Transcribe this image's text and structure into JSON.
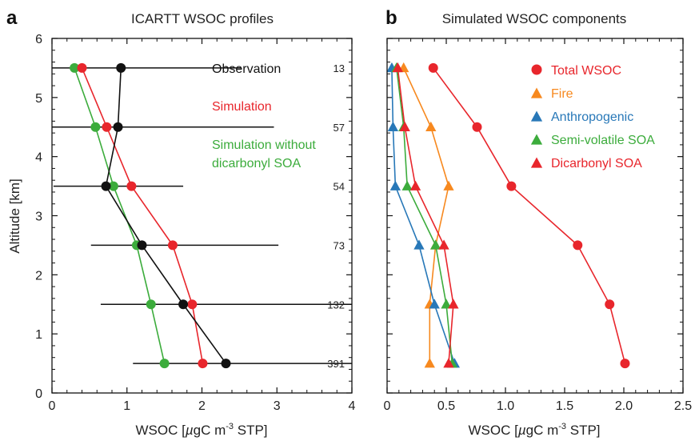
{
  "chart_data": [
    {
      "panel_label": "a",
      "type": "line",
      "title": "ICARTT WSOC profiles",
      "xlabel": "WSOC  [µgC m-3 STP]",
      "xlabel_parts": {
        "pre": "WSOC  [",
        "mu": "µ",
        "unit": "gC m",
        "sup": "-3",
        "post": " STP]"
      },
      "ylabel": "Altitude [km]",
      "xlim": [
        0,
        4
      ],
      "ylim": [
        0,
        6
      ],
      "xticks": [
        "0",
        "1",
        "2",
        "3",
        "4"
      ],
      "yticks": [
        "0",
        "1",
        "2",
        "3",
        "4",
        "5",
        "6"
      ],
      "legend_placement": "top-right (text labels)",
      "series": [
        {
          "name": "Observation",
          "color": "#111111",
          "points": [
            [
              0.92,
              5.5
            ],
            [
              0.88,
              4.5
            ],
            [
              0.72,
              3.5
            ],
            [
              1.2,
              2.5
            ],
            [
              1.75,
              1.5
            ],
            [
              2.32,
              0.5
            ]
          ],
          "x_err_low": [
            0.92,
            4.5,
            0.7,
            0.68,
            1.1,
            1.24
          ],
          "x_err_high": [
            1.6,
            2.08,
            1.03,
            1.82,
            2.87,
            3.57
          ]
        },
        {
          "name": "Simulation",
          "color": "#e8262c",
          "points": [
            [
              0.4,
              5.5
            ],
            [
              0.73,
              4.5
            ],
            [
              1.06,
              3.5
            ],
            [
              1.61,
              2.5
            ],
            [
              1.87,
              1.5
            ],
            [
              2.01,
              0.5
            ]
          ]
        },
        {
          "name": "Simulation without dicarbonyl SOA",
          "label_lines": [
            "Simulation without",
            "dicarbonyl SOA"
          ],
          "color": "#3cac3c",
          "points": [
            [
              0.3,
              5.5
            ],
            [
              0.58,
              4.5
            ],
            [
              0.82,
              3.5
            ],
            [
              1.13,
              2.5
            ],
            [
              1.32,
              1.5
            ],
            [
              1.5,
              0.5
            ]
          ]
        }
      ],
      "sample_counts": {
        "altitudes": [
          5.5,
          4.5,
          3.5,
          2.5,
          1.5,
          0.5
        ],
        "values": [
          "13",
          "57",
          "54",
          "73",
          "132",
          "391"
        ]
      }
    },
    {
      "panel_label": "b",
      "type": "line",
      "title": "Simulated WSOC components",
      "xlabel": "WSOC  [µgC m-3 STP]",
      "xlabel_parts": {
        "pre": "WSOC  [",
        "mu": "µ",
        "unit": "gC m",
        "sup": "-3",
        "post": " STP]"
      },
      "xlim": [
        0,
        2.5
      ],
      "ylim": [
        0,
        6
      ],
      "xticks": [
        "0",
        "0.5",
        "1.0",
        "1.5",
        "2.0",
        "2.5"
      ],
      "legend_placement": "top-right",
      "series": [
        {
          "name": "Total WSOC",
          "marker": "circle",
          "color": "#e8262c",
          "points": [
            [
              0.39,
              5.5
            ],
            [
              0.76,
              4.5
            ],
            [
              1.05,
              3.5
            ],
            [
              1.61,
              2.5
            ],
            [
              1.88,
              1.5
            ],
            [
              2.01,
              0.5
            ]
          ]
        },
        {
          "name": "Fire",
          "marker": "triangle",
          "color": "#f7891f",
          "points": [
            [
              0.14,
              5.5
            ],
            [
              0.37,
              4.5
            ],
            [
              0.52,
              3.5
            ],
            [
              0.41,
              2.5
            ],
            [
              0.36,
              1.5
            ],
            [
              0.36,
              0.5
            ]
          ]
        },
        {
          "name": "Anthropogenic",
          "marker": "triangle",
          "color": "#2878b8",
          "points": [
            [
              0.04,
              5.5
            ],
            [
              0.05,
              4.5
            ],
            [
              0.07,
              3.5
            ],
            [
              0.27,
              2.5
            ],
            [
              0.4,
              1.5
            ],
            [
              0.57,
              0.5
            ]
          ]
        },
        {
          "name": "Semi-volatile SOA",
          "marker": "triangle",
          "color": "#3cac3c",
          "points": [
            [
              0.08,
              5.5
            ],
            [
              0.14,
              4.5
            ],
            [
              0.17,
              3.5
            ],
            [
              0.41,
              2.5
            ],
            [
              0.5,
              1.5
            ],
            [
              0.55,
              0.5
            ]
          ]
        },
        {
          "name": "Dicarbonyl SOA",
          "marker": "triangle",
          "color": "#e8262c",
          "points": [
            [
              0.09,
              5.5
            ],
            [
              0.15,
              4.5
            ],
            [
              0.24,
              3.5
            ],
            [
              0.48,
              2.5
            ],
            [
              0.56,
              1.5
            ],
            [
              0.52,
              0.5
            ]
          ]
        }
      ]
    }
  ]
}
